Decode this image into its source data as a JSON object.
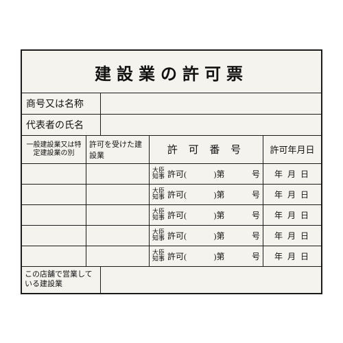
{
  "title": "建設業の許可票",
  "info_rows": [
    {
      "label": "商号又は名称",
      "value": ""
    },
    {
      "label": "代表者の氏名",
      "value": ""
    }
  ],
  "grid_header": {
    "col_a": "一般建設業又は特定建設業の別",
    "col_b": "許可を受けた建設業",
    "col_c": "許 可 番 号",
    "col_d": "許可年月日"
  },
  "permit_row_template": {
    "gov_top": "大臣",
    "gov_bot": "知事",
    "kyoka": "許可(",
    "dai": ")第",
    "go": "号",
    "date": "年 月 日"
  },
  "row_count": 5,
  "footer": {
    "label": "この店舗で営業している建設業",
    "value": ""
  },
  "colors": {
    "board_bg": "#f5f3ee",
    "border": "#1a1a1a",
    "text": "#111111",
    "page_bg": "#ffffff"
  }
}
